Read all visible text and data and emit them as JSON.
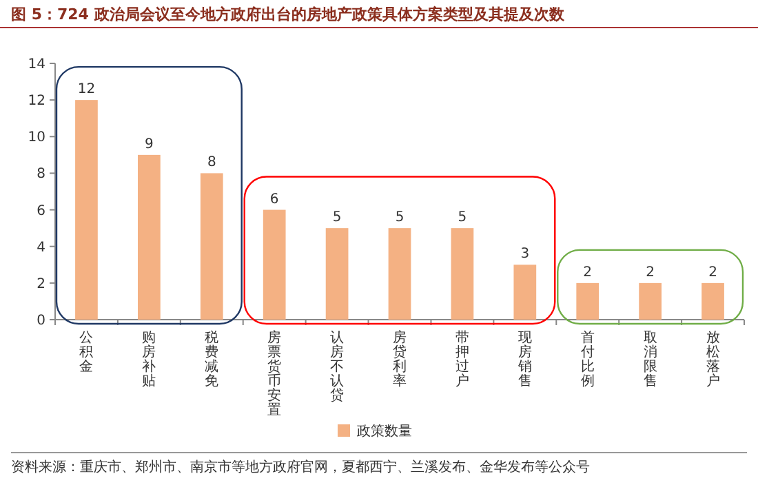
{
  "chart_data": {
    "type": "bar",
    "title": "图 5：724 政治局会议至今地方政府出台的房地产政策具体方案类型及其提及次数",
    "categories": [
      "公积金",
      "购房补贴",
      "税费减免",
      "房票货币安置",
      "认房不认贷",
      "房贷利率",
      "带押过户",
      "现房销售",
      "首付比例",
      "取消限售",
      "放松落户"
    ],
    "series": [
      {
        "name": "政策数量",
        "color": "#f4b183",
        "values": [
          12,
          9,
          8,
          6,
          5,
          5,
          5,
          3,
          2,
          2,
          2
        ]
      }
    ],
    "ylim": [
      0,
      14
    ],
    "yticks": [
      0,
      2,
      4,
      6,
      8,
      10,
      12,
      14
    ],
    "grid": false,
    "legend": "bottom",
    "data_labels": true,
    "annotations": [
      "资料来源：重庆市、郑州市、南京市等地方政府官网，夏都西宁、兰溪发布、金华发布等公众号"
    ]
  }
}
